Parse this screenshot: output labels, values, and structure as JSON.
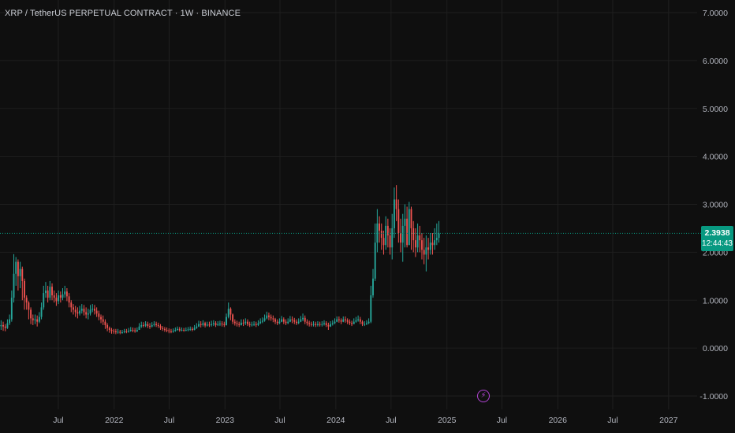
{
  "header": {
    "title": "XRP / TetherUS PERPETUAL CONTRACT · 1W · BINANCE"
  },
  "price": {
    "last": "2.3938",
    "countdown": "12:44:43",
    "value": 2.3938,
    "color": "#089981"
  },
  "colors": {
    "up": "#26a69a",
    "down": "#ef5350",
    "grid": "#1f1f1f",
    "background": "#0f0f0f",
    "text": "#b2b5be"
  },
  "icons": {
    "flash": "lightning-icon"
  },
  "chart_data": {
    "type": "candlestick",
    "title": "XRP / TetherUS PERPETUAL CONTRACT · 1W · BINANCE",
    "interval": "1W",
    "ylim": [
      -1.2,
      7.2
    ],
    "y_ticks": [
      "7.0000",
      "6.0000",
      "5.0000",
      "4.0000",
      "3.0000",
      "2.0000",
      "1.0000",
      "0.0000",
      "-1.0000"
    ],
    "y_tick_values": [
      7,
      6,
      5,
      4,
      3,
      2,
      1,
      0,
      -1
    ],
    "x_ticks": [
      "Jul",
      "2022",
      "Jul",
      "2023",
      "Jul",
      "2024",
      "Jul",
      "2025",
      "Jul",
      "2026",
      "Jul",
      "2027"
    ],
    "x_tick_dates": [
      "2021-07-01",
      "2022-01-01",
      "2022-07-01",
      "2023-01-01",
      "2023-07-01",
      "2024-01-01",
      "2024-07-01",
      "2025-01-01",
      "2025-07-01",
      "2026-01-01",
      "2026-07-01",
      "2027-01-01"
    ],
    "x_range": [
      "2020-12-21",
      "2027-04-05"
    ],
    "grid": true,
    "closes": [
      0.48,
      0.45,
      0.42,
      0.52,
      0.6,
      1.05,
      1.55,
      1.8,
      1.5,
      1.65,
      1.4,
      1.05,
      0.95,
      0.8,
      0.62,
      0.58,
      0.6,
      0.55,
      0.65,
      0.85,
      1.15,
      1.2,
      1.05,
      1.28,
      1.1,
      1.05,
      0.98,
      1.1,
      1.05,
      1.12,
      1.18,
      1.08,
      0.95,
      0.85,
      0.8,
      0.75,
      0.72,
      0.78,
      0.82,
      0.75,
      0.7,
      0.72,
      0.8,
      0.82,
      0.78,
      0.72,
      0.65,
      0.6,
      0.55,
      0.48,
      0.42,
      0.38,
      0.36,
      0.35,
      0.33,
      0.34,
      0.32,
      0.33,
      0.35,
      0.34,
      0.36,
      0.38,
      0.37,
      0.35,
      0.38,
      0.45,
      0.48,
      0.47,
      0.5,
      0.46,
      0.45,
      0.48,
      0.5,
      0.48,
      0.46,
      0.42,
      0.4,
      0.38,
      0.37,
      0.35,
      0.34,
      0.36,
      0.38,
      0.4,
      0.37,
      0.38,
      0.37,
      0.38,
      0.39,
      0.4,
      0.38,
      0.42,
      0.45,
      0.5,
      0.48,
      0.52,
      0.47,
      0.49,
      0.48,
      0.5,
      0.52,
      0.48,
      0.5,
      0.51,
      0.5,
      0.48,
      0.65,
      0.82,
      0.7,
      0.55,
      0.52,
      0.5,
      0.48,
      0.53,
      0.52,
      0.55,
      0.5,
      0.48,
      0.49,
      0.5,
      0.48,
      0.52,
      0.55,
      0.57,
      0.62,
      0.68,
      0.65,
      0.62,
      0.6,
      0.55,
      0.52,
      0.55,
      0.6,
      0.55,
      0.52,
      0.55,
      0.6,
      0.58,
      0.55,
      0.52,
      0.55,
      0.6,
      0.63,
      0.55,
      0.52,
      0.5,
      0.49,
      0.5,
      0.48,
      0.5,
      0.49,
      0.5,
      0.52,
      0.48,
      0.45,
      0.5,
      0.52,
      0.55,
      0.6,
      0.58,
      0.55,
      0.6,
      0.58,
      0.55,
      0.52,
      0.5,
      0.55,
      0.58,
      0.6,
      0.55,
      0.5,
      0.5,
      0.52,
      0.55,
      1.1,
      1.45,
      2.2,
      2.6,
      2.45,
      2.3,
      2.15,
      2.55,
      2.35,
      2.1,
      2.5,
      3.1,
      2.9,
      2.4,
      2.2,
      2.55,
      2.7,
      2.15,
      2.9,
      2.5,
      2.25,
      2.1,
      2.35,
      2.25,
      2.05,
      1.95,
      2.1,
      2.05,
      2.2,
      2.15,
      2.25,
      2.3,
      2.3938
    ],
    "highs": [
      0.58,
      0.55,
      0.5,
      0.6,
      0.7,
      1.2,
      1.96,
      1.9,
      1.85,
      1.8,
      1.7,
      1.45,
      1.1,
      0.98,
      0.85,
      0.7,
      0.7,
      0.68,
      0.75,
      0.95,
      1.3,
      1.38,
      1.3,
      1.4,
      1.35,
      1.2,
      1.15,
      1.2,
      1.18,
      1.25,
      1.3,
      1.25,
      1.15,
      1.0,
      0.92,
      0.88,
      0.85,
      0.88,
      0.92,
      0.9,
      0.85,
      0.82,
      0.9,
      0.92,
      0.9,
      0.85,
      0.78,
      0.7,
      0.68,
      0.6,
      0.52,
      0.45,
      0.42,
      0.4,
      0.4,
      0.4,
      0.38,
      0.38,
      0.4,
      0.4,
      0.42,
      0.44,
      0.43,
      0.42,
      0.43,
      0.52,
      0.55,
      0.54,
      0.56,
      0.55,
      0.52,
      0.54,
      0.56,
      0.55,
      0.53,
      0.5,
      0.46,
      0.44,
      0.43,
      0.41,
      0.4,
      0.41,
      0.43,
      0.45,
      0.44,
      0.43,
      0.42,
      0.43,
      0.44,
      0.45,
      0.44,
      0.48,
      0.52,
      0.57,
      0.56,
      0.58,
      0.55,
      0.55,
      0.55,
      0.57,
      0.58,
      0.56,
      0.56,
      0.57,
      0.56,
      0.55,
      0.72,
      0.95,
      0.85,
      0.72,
      0.6,
      0.57,
      0.55,
      0.6,
      0.6,
      0.62,
      0.6,
      0.55,
      0.55,
      0.56,
      0.55,
      0.58,
      0.62,
      0.64,
      0.7,
      0.76,
      0.74,
      0.7,
      0.68,
      0.63,
      0.6,
      0.62,
      0.67,
      0.64,
      0.6,
      0.62,
      0.67,
      0.66,
      0.63,
      0.6,
      0.62,
      0.67,
      0.72,
      0.68,
      0.6,
      0.57,
      0.55,
      0.56,
      0.55,
      0.56,
      0.55,
      0.56,
      0.58,
      0.56,
      0.53,
      0.56,
      0.58,
      0.62,
      0.66,
      0.66,
      0.62,
      0.66,
      0.66,
      0.62,
      0.6,
      0.57,
      0.62,
      0.65,
      0.68,
      0.65,
      0.58,
      0.56,
      0.58,
      0.62,
      1.3,
      1.65,
      2.6,
      2.9,
      2.75,
      2.6,
      2.45,
      2.75,
      2.7,
      2.5,
      2.8,
      3.35,
      3.4,
      3.1,
      2.7,
      2.8,
      3.0,
      2.95,
      3.05,
      2.95,
      2.65,
      2.5,
      2.6,
      2.55,
      2.4,
      2.3,
      2.35,
      2.3,
      2.4,
      2.4,
      2.5,
      2.6,
      2.65
    ],
    "lows": [
      0.38,
      0.36,
      0.35,
      0.4,
      0.48,
      0.55,
      0.95,
      1.3,
      1.2,
      1.25,
      1.0,
      0.8,
      0.8,
      0.6,
      0.5,
      0.48,
      0.5,
      0.45,
      0.52,
      0.6,
      0.8,
      1.05,
      0.95,
      1.0,
      1.0,
      0.95,
      0.88,
      0.92,
      0.95,
      1.0,
      1.05,
      0.98,
      0.85,
      0.75,
      0.7,
      0.65,
      0.62,
      0.68,
      0.72,
      0.68,
      0.62,
      0.6,
      0.68,
      0.75,
      0.7,
      0.65,
      0.58,
      0.52,
      0.48,
      0.4,
      0.35,
      0.32,
      0.3,
      0.3,
      0.29,
      0.3,
      0.29,
      0.3,
      0.31,
      0.31,
      0.32,
      0.34,
      0.33,
      0.32,
      0.33,
      0.38,
      0.42,
      0.43,
      0.44,
      0.42,
      0.4,
      0.43,
      0.45,
      0.44,
      0.42,
      0.38,
      0.36,
      0.34,
      0.33,
      0.31,
      0.31,
      0.32,
      0.34,
      0.36,
      0.34,
      0.35,
      0.34,
      0.35,
      0.35,
      0.36,
      0.35,
      0.37,
      0.4,
      0.44,
      0.43,
      0.45,
      0.43,
      0.45,
      0.44,
      0.45,
      0.46,
      0.44,
      0.46,
      0.46,
      0.45,
      0.44,
      0.47,
      0.62,
      0.58,
      0.5,
      0.47,
      0.45,
      0.44,
      0.47,
      0.46,
      0.48,
      0.46,
      0.44,
      0.45,
      0.46,
      0.44,
      0.46,
      0.5,
      0.52,
      0.55,
      0.6,
      0.58,
      0.57,
      0.54,
      0.5,
      0.48,
      0.5,
      0.54,
      0.5,
      0.48,
      0.5,
      0.54,
      0.52,
      0.5,
      0.48,
      0.5,
      0.54,
      0.56,
      0.5,
      0.47,
      0.45,
      0.45,
      0.45,
      0.44,
      0.45,
      0.45,
      0.45,
      0.47,
      0.44,
      0.38,
      0.44,
      0.47,
      0.5,
      0.54,
      0.53,
      0.5,
      0.54,
      0.53,
      0.5,
      0.48,
      0.46,
      0.5,
      0.53,
      0.55,
      0.5,
      0.46,
      0.46,
      0.48,
      0.5,
      0.52,
      1.05,
      1.4,
      2.0,
      2.2,
      2.05,
      1.95,
      2.05,
      2.1,
      1.95,
      1.85,
      2.3,
      2.65,
      2.2,
      2.0,
      1.8,
      2.1,
      2.1,
      2.4,
      2.05,
      2.0,
      1.9,
      2.0,
      2.0,
      1.85,
      1.75,
      1.6,
      1.85,
      1.95,
      1.95,
      2.05,
      2.15,
      2.2
    ]
  }
}
